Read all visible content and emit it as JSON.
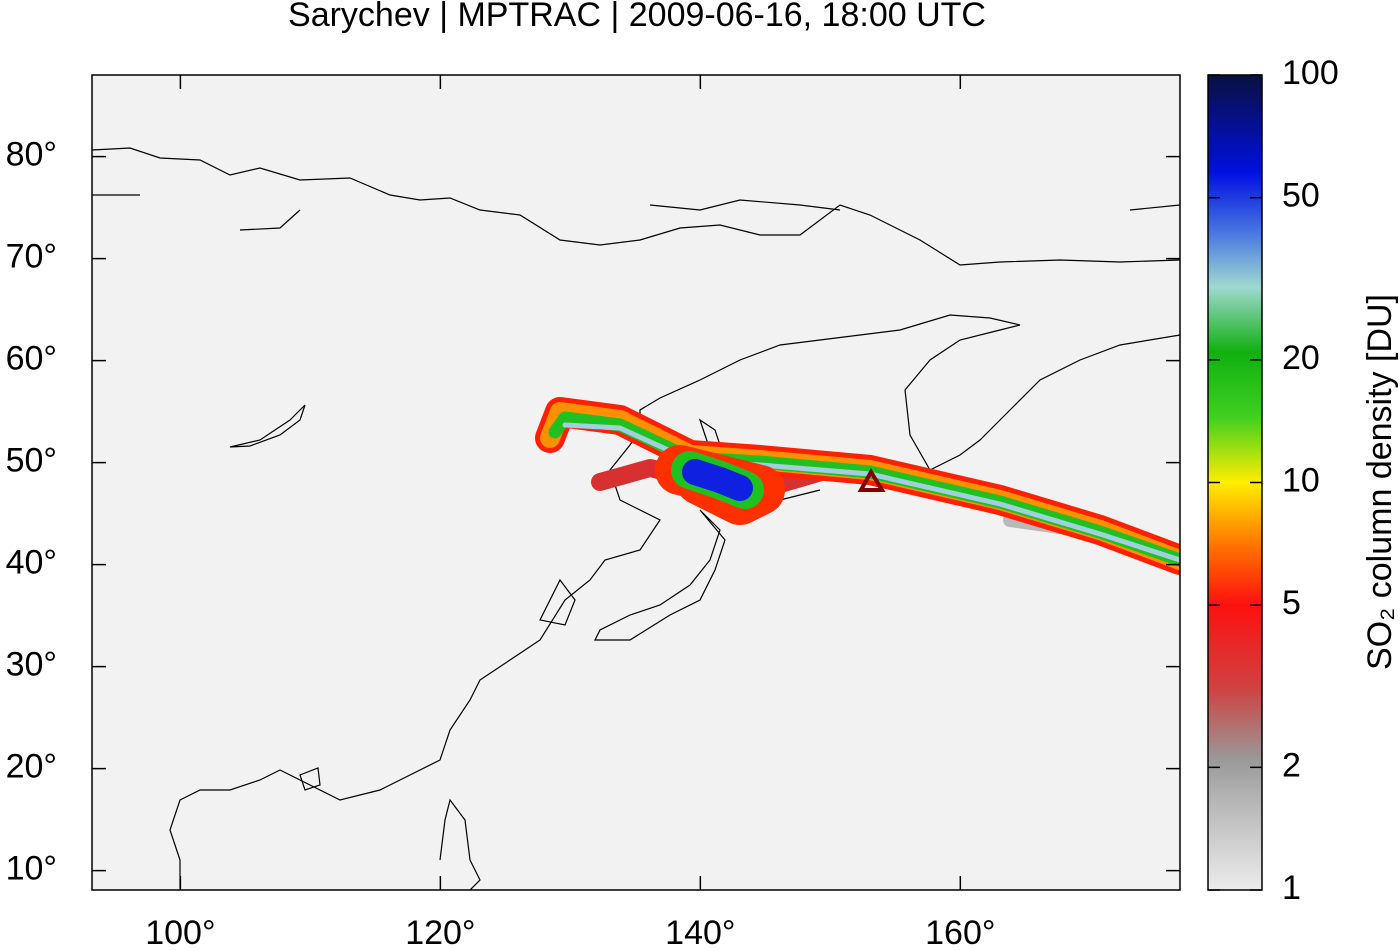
{
  "chart_data": {
    "type": "map",
    "title": "Sarychev | MPTRAC | 2009-06-16, 18:00 UTC",
    "xlim": [
      93.2,
      176.9
    ],
    "ylim": [
      8.1,
      88
    ],
    "xticks": [
      {
        "value": 100,
        "label": "100°"
      },
      {
        "value": 120,
        "label": "120°"
      },
      {
        "value": 140,
        "label": "140°"
      },
      {
        "value": 160,
        "label": "160°"
      }
    ],
    "yticks": [
      {
        "value": 10,
        "label": "10°"
      },
      {
        "value": 20,
        "label": "20°"
      },
      {
        "value": 30,
        "label": "30°"
      },
      {
        "value": 40,
        "label": "40°"
      },
      {
        "value": 50,
        "label": "50°"
      },
      {
        "value": 60,
        "label": "60°"
      },
      {
        "value": 70,
        "label": "70°"
      },
      {
        "value": 80,
        "label": "80°"
      }
    ],
    "colorbar": {
      "label": "SO₂ column density [DU]",
      "lim": [
        1,
        100
      ],
      "log": true,
      "ticks": [
        1,
        2,
        5,
        10,
        20,
        50,
        100
      ]
    }
  }
}
